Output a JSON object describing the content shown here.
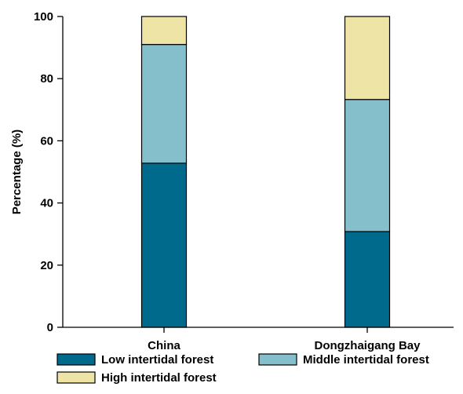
{
  "chart_data": {
    "type": "bar",
    "stacked": true,
    "categories": [
      "China",
      "Dongzhaigang Bay"
    ],
    "series": [
      {
        "name": "Low intertidal forest",
        "values": [
          52.8,
          30.8
        ],
        "color": "#006a8c"
      },
      {
        "name": "Middle intertidal forest",
        "values": [
          38.2,
          42.5
        ],
        "color": "#86bfcc"
      },
      {
        "name": "High intertidal forest",
        "values": [
          9.0,
          26.7
        ],
        "color": "#eee4a6"
      }
    ],
    "ylabel": "Percentage (%)",
    "xlabel": "",
    "ylim": [
      0,
      100
    ],
    "yticks": [
      0,
      20,
      40,
      60,
      80,
      100
    ],
    "grid": false,
    "legend_position": "bottom"
  }
}
